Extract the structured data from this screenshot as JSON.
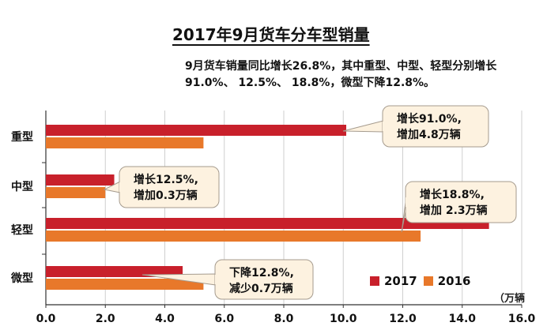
{
  "title": "2017年9月货车分车型销量",
  "subtitle": "9月货车销量同比增长26.8%，其中重型、中型、轻型分别增长91.0%、 12.5%、 18.8%，微型下降12.8%。",
  "unit": "（万辆",
  "colors": {
    "s2017": "#c8202b",
    "s2016": "#e8782a",
    "callout_bg": "#fdf2e0",
    "callout_border": "#a59b8e"
  },
  "chart_data": {
    "type": "bar",
    "orientation": "horizontal",
    "categories": [
      "重型",
      "中型",
      "轻型",
      "微型"
    ],
    "series": [
      {
        "name": "2017",
        "values": [
          10.1,
          2.3,
          14.9,
          4.6
        ]
      },
      {
        "name": "2016",
        "values": [
          5.3,
          2.0,
          12.6,
          5.3
        ]
      }
    ],
    "xlim": [
      0,
      16
    ],
    "xticks": [
      "0.0",
      "2.0",
      "4.0",
      "6.0",
      "8.0",
      "10.0",
      "12.0",
      "14.0",
      "16.0"
    ],
    "legend": "bottom-right",
    "annotations": [
      {
        "category": "重型",
        "lines": [
          "增长91.0%,",
          "增加4.8万辆"
        ]
      },
      {
        "category": "中型",
        "lines": [
          "增长12.5%,",
          "增加0.3万辆"
        ]
      },
      {
        "category": "轻型",
        "lines": [
          "增长18.8%,",
          "增加 2.3万辆"
        ]
      },
      {
        "category": "微型",
        "lines": [
          "下降12.8%,",
          "减少0.7万辆"
        ]
      }
    ]
  }
}
